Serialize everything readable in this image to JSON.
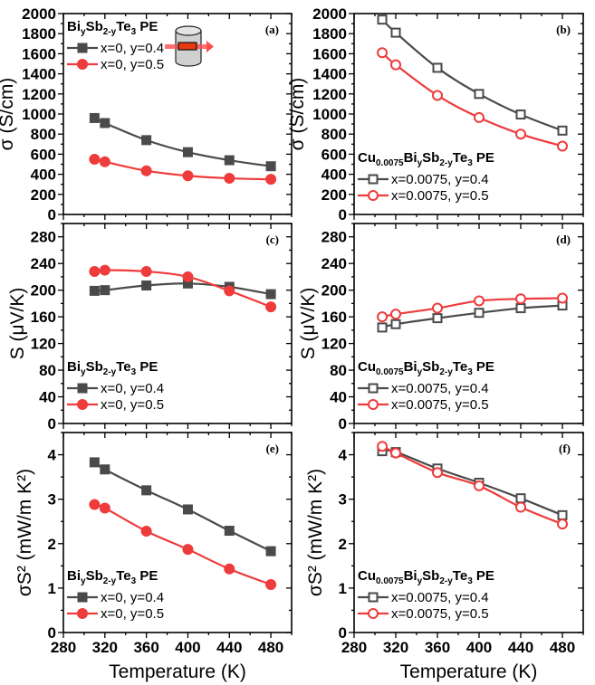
{
  "figure": {
    "colors": {
      "series_a": "#4a4a4a",
      "series_b": "#ee3b3b",
      "frame": "#000000"
    }
  },
  "chart_data": [
    {
      "id": "a",
      "type": "line",
      "tag": "(a)",
      "xlabel": "",
      "ylabel": "σ (S/cm)",
      "xlim": [
        280,
        500
      ],
      "ylim": [
        0,
        2000
      ],
      "xticks": [
        280,
        320,
        360,
        400,
        440,
        480
      ],
      "yticks": [
        0,
        200,
        400,
        600,
        800,
        1000,
        1200,
        1400,
        1600,
        1800,
        2000
      ],
      "show_xtick_labels": false,
      "legend": {
        "position": "top-left",
        "title": "BiySb2-yTe3 PE",
        "title_parts": [
          [
            "Bi",
            ""
          ],
          [
            "y",
            "sub"
          ],
          [
            "Sb",
            ""
          ],
          [
            "2-y",
            "sub"
          ],
          [
            "Te",
            ""
          ],
          [
            "3",
            "sub"
          ],
          [
            " PE",
            ""
          ]
        ]
      },
      "inset": "cylinder-sample-icon",
      "x": [
        310,
        320,
        360,
        400,
        440,
        480
      ],
      "series": [
        {
          "name": "x=0, y=0.4",
          "marker": "square-filled",
          "values": [
            960,
            910,
            740,
            620,
            540,
            480
          ]
        },
        {
          "name": "x=0, y=0.5",
          "marker": "circle-filled",
          "values": [
            550,
            525,
            435,
            385,
            360,
            350
          ]
        }
      ]
    },
    {
      "id": "b",
      "type": "line",
      "tag": "(b)",
      "xlabel": "",
      "ylabel": "σ (S/cm)",
      "xlim": [
        280,
        500
      ],
      "ylim": [
        0,
        2000
      ],
      "xticks": [
        280,
        320,
        360,
        400,
        440,
        480
      ],
      "yticks": [
        0,
        200,
        400,
        600,
        800,
        1000,
        1200,
        1400,
        1600,
        1800,
        2000
      ],
      "show_xtick_labels": false,
      "legend": {
        "position": "bottom-left",
        "title": "Cu0.0075BiySb2-yTe3 PE",
        "title_parts": [
          [
            "Cu",
            ""
          ],
          [
            "0.0075",
            "sub"
          ],
          [
            "Bi",
            ""
          ],
          [
            "y",
            "sub"
          ],
          [
            "Sb",
            ""
          ],
          [
            "2-y",
            "sub"
          ],
          [
            "Te",
            ""
          ],
          [
            "3",
            "sub"
          ],
          [
            " PE",
            ""
          ]
        ]
      },
      "x": [
        307,
        320,
        360,
        400,
        440,
        480
      ],
      "series": [
        {
          "name": "x=0.0075, y=0.4",
          "marker": "square-open",
          "values": [
            1940,
            1810,
            1460,
            1200,
            995,
            835
          ]
        },
        {
          "name": "x=0.0075, y=0.5",
          "marker": "circle-open",
          "values": [
            1610,
            1490,
            1185,
            965,
            800,
            680
          ]
        }
      ]
    },
    {
      "id": "c",
      "type": "line",
      "tag": "(c)",
      "xlabel": "",
      "ylabel": "S (μV/K)",
      "xlim": [
        280,
        500
      ],
      "ylim": [
        0,
        300
      ],
      "xticks": [
        280,
        320,
        360,
        400,
        440,
        480
      ],
      "yticks": [
        0,
        40,
        80,
        120,
        160,
        200,
        240,
        280
      ],
      "show_xtick_labels": false,
      "legend": {
        "position": "bottom-left",
        "title": "BiySb2-yTe3 PE",
        "title_parts": [
          [
            "Bi",
            ""
          ],
          [
            "y",
            "sub"
          ],
          [
            "Sb",
            ""
          ],
          [
            "2-y",
            "sub"
          ],
          [
            "Te",
            ""
          ],
          [
            "3",
            "sub"
          ],
          [
            " PE",
            ""
          ]
        ]
      },
      "x": [
        310,
        320,
        360,
        400,
        440,
        480
      ],
      "series": [
        {
          "name": "x=0, y=0.4",
          "marker": "square-filled",
          "values": [
            199,
            200,
            207,
            210,
            205,
            194
          ]
        },
        {
          "name": "x=0, y=0.5",
          "marker": "circle-filled",
          "values": [
            228,
            230,
            228,
            220,
            199,
            175
          ]
        }
      ]
    },
    {
      "id": "d",
      "type": "line",
      "tag": "(d)",
      "xlabel": "",
      "ylabel": "S (μV/K)",
      "xlim": [
        280,
        500
      ],
      "ylim": [
        0,
        300
      ],
      "xticks": [
        280,
        320,
        360,
        400,
        440,
        480
      ],
      "yticks": [
        0,
        40,
        80,
        120,
        160,
        200,
        240,
        280
      ],
      "show_xtick_labels": false,
      "legend": {
        "position": "bottom-left",
        "title": "Cu0.0075BiySb2-yTe3 PE",
        "title_parts": [
          [
            "Cu",
            ""
          ],
          [
            "0.0075",
            "sub"
          ],
          [
            "Bi",
            ""
          ],
          [
            "y",
            "sub"
          ],
          [
            "Sb",
            ""
          ],
          [
            "2-y",
            "sub"
          ],
          [
            "Te",
            ""
          ],
          [
            "3",
            "sub"
          ],
          [
            " PE",
            ""
          ]
        ]
      },
      "x": [
        307,
        320,
        360,
        400,
        440,
        480
      ],
      "series": [
        {
          "name": "x=0.0075, y=0.4",
          "marker": "square-open",
          "values": [
            144,
            149,
            158,
            166,
            173,
            177
          ]
        },
        {
          "name": "x=0.0075, y=0.5",
          "marker": "circle-open",
          "values": [
            160,
            164,
            173,
            184,
            187,
            188
          ]
        }
      ]
    },
    {
      "id": "e",
      "type": "line",
      "tag": "(e)",
      "xlabel": "Temperature (K)",
      "ylabel": "σS² (mW/m K²)",
      "xlim": [
        280,
        500
      ],
      "ylim": [
        0,
        4.5
      ],
      "xticks": [
        280,
        320,
        360,
        400,
        440,
        480
      ],
      "yticks": [
        0,
        1,
        2,
        3,
        4
      ],
      "show_xtick_labels": true,
      "legend": {
        "position": "bottom-left",
        "title": "BiySb2-yTe3 PE",
        "title_parts": [
          [
            "Bi",
            ""
          ],
          [
            "y",
            "sub"
          ],
          [
            "Sb",
            ""
          ],
          [
            "2-y",
            "sub"
          ],
          [
            "Te",
            ""
          ],
          [
            "3",
            "sub"
          ],
          [
            " PE",
            ""
          ]
        ]
      },
      "x": [
        310,
        320,
        360,
        400,
        440,
        480
      ],
      "series": [
        {
          "name": "x=0, y=0.4",
          "marker": "square-filled",
          "values": [
            3.83,
            3.67,
            3.2,
            2.77,
            2.29,
            1.83
          ]
        },
        {
          "name": "x=0, y=0.5",
          "marker": "circle-filled",
          "values": [
            2.88,
            2.8,
            2.28,
            1.87,
            1.43,
            1.08
          ]
        }
      ]
    },
    {
      "id": "f",
      "type": "line",
      "tag": "(f)",
      "xlabel": "Temperature (K)",
      "ylabel": "σS² (mW/m K²)",
      "xlim": [
        280,
        500
      ],
      "ylim": [
        0,
        4.5
      ],
      "xticks": [
        280,
        320,
        360,
        400,
        440,
        480
      ],
      "yticks": [
        0,
        1,
        2,
        3,
        4
      ],
      "show_xtick_labels": true,
      "legend": {
        "position": "bottom-left",
        "title": "Cu0.0075BiySb2-yTe3 PE",
        "title_parts": [
          [
            "Cu",
            ""
          ],
          [
            "0.0075",
            "sub"
          ],
          [
            "Bi",
            ""
          ],
          [
            "y",
            "sub"
          ],
          [
            "Sb",
            ""
          ],
          [
            "2-y",
            "sub"
          ],
          [
            "Te",
            ""
          ],
          [
            "3",
            "sub"
          ],
          [
            " PE",
            ""
          ]
        ]
      },
      "x": [
        307,
        320,
        360,
        400,
        440,
        480
      ],
      "series": [
        {
          "name": "x=0.0075, y=0.4",
          "marker": "square-open",
          "values": [
            4.08,
            4.06,
            3.69,
            3.37,
            3.02,
            2.64
          ]
        },
        {
          "name": "x=0.0075, y=0.5",
          "marker": "circle-open",
          "values": [
            4.19,
            4.04,
            3.6,
            3.3,
            2.82,
            2.44
          ]
        }
      ]
    }
  ]
}
